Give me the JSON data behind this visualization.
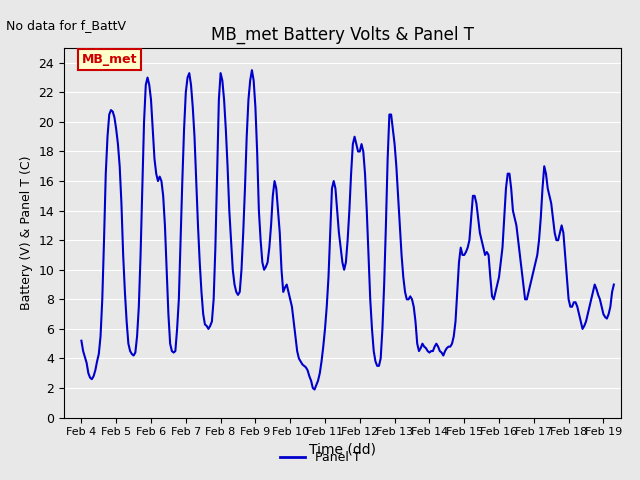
{
  "title": "MB_met Battery Volts & Panel T",
  "ylabel": "Battery (V) & Panel T (C)",
  "xlabel": "Time (dd)",
  "no_data_label": "No data for f_BattV",
  "legend_label": "Panel T",
  "legend_color": "#0000cc",
  "annotation_label": "MB_met",
  "annotation_bg": "#ffffcc",
  "annotation_border": "#cc0000",
  "annotation_text_color": "#cc0000",
  "ylim": [
    0,
    25
  ],
  "yticks": [
    0,
    2,
    4,
    6,
    8,
    10,
    12,
    14,
    16,
    18,
    20,
    22,
    24
  ],
  "xlim": [
    3.5,
    19.5
  ],
  "xtick_positions": [
    4,
    5,
    6,
    7,
    8,
    9,
    10,
    11,
    12,
    13,
    14,
    15,
    16,
    17,
    18,
    19
  ],
  "xtick_labels": [
    "Feb 4",
    "Feb 5",
    "Feb 6",
    "Feb 7",
    "Feb 8",
    "Feb 9",
    "Feb 10",
    "Feb 11",
    "Feb 12",
    "Feb 13",
    "Feb 14",
    "Feb 15",
    "Feb 16",
    "Feb 17",
    "Feb 18",
    "Feb 19"
  ],
  "line_color": "#0000cc",
  "line_width": 1.5,
  "bg_color": "#e8e8e8",
  "plot_bg_color": "#e8e8e8",
  "x": [
    4.0,
    4.05,
    4.1,
    4.15,
    4.2,
    4.25,
    4.3,
    4.35,
    4.4,
    4.45,
    4.5,
    4.55,
    4.6,
    4.65,
    4.7,
    4.75,
    4.8,
    4.85,
    4.9,
    4.95,
    5.0,
    5.05,
    5.1,
    5.15,
    5.2,
    5.25,
    5.3,
    5.35,
    5.4,
    5.45,
    5.5,
    5.55,
    5.6,
    5.65,
    5.7,
    5.75,
    5.8,
    5.85,
    5.9,
    5.95,
    6.0,
    6.05,
    6.1,
    6.15,
    6.2,
    6.25,
    6.3,
    6.35,
    6.4,
    6.45,
    6.5,
    6.55,
    6.6,
    6.65,
    6.7,
    6.75,
    6.8,
    6.85,
    6.9,
    6.95,
    7.0,
    7.05,
    7.1,
    7.15,
    7.2,
    7.25,
    7.3,
    7.35,
    7.4,
    7.45,
    7.5,
    7.55,
    7.6,
    7.65,
    7.7,
    7.75,
    7.8,
    7.85,
    7.9,
    7.95,
    8.0,
    8.05,
    8.1,
    8.15,
    8.2,
    8.25,
    8.3,
    8.35,
    8.4,
    8.45,
    8.5,
    8.55,
    8.6,
    8.65,
    8.7,
    8.75,
    8.8,
    8.85,
    8.9,
    8.95,
    9.0,
    9.05,
    9.1,
    9.15,
    9.2,
    9.25,
    9.3,
    9.35,
    9.4,
    9.45,
    9.5,
    9.55,
    9.6,
    9.65,
    9.7,
    9.75,
    9.8,
    9.85,
    9.9,
    9.95,
    10.0,
    10.05,
    10.1,
    10.15,
    10.2,
    10.25,
    10.3,
    10.35,
    10.4,
    10.45,
    10.5,
    10.55,
    10.6,
    10.65,
    10.7,
    10.75,
    10.8,
    10.85,
    10.9,
    10.95,
    11.0,
    11.05,
    11.1,
    11.15,
    11.2,
    11.25,
    11.3,
    11.35,
    11.4,
    11.45,
    11.5,
    11.55,
    11.6,
    11.65,
    11.7,
    11.75,
    11.8,
    11.85,
    11.9,
    11.95,
    12.0,
    12.05,
    12.1,
    12.15,
    12.2,
    12.25,
    12.3,
    12.35,
    12.4,
    12.45,
    12.5,
    12.55,
    12.6,
    12.65,
    12.7,
    12.75,
    12.8,
    12.85,
    12.9,
    12.95,
    13.0,
    13.05,
    13.1,
    13.15,
    13.2,
    13.25,
    13.3,
    13.35,
    13.4,
    13.45,
    13.5,
    13.55,
    13.6,
    13.65,
    13.7,
    13.75,
    13.8,
    13.85,
    13.9,
    13.95,
    14.0,
    14.05,
    14.1,
    14.15,
    14.2,
    14.25,
    14.3,
    14.35,
    14.4,
    14.45,
    14.5,
    14.55,
    14.6,
    14.65,
    14.7,
    14.75,
    14.8,
    14.85,
    14.9,
    14.95,
    15.0,
    15.05,
    15.1,
    15.15,
    15.2,
    15.25,
    15.3,
    15.35,
    15.4,
    15.45,
    15.5,
    15.55,
    15.6,
    15.65,
    15.7,
    15.75,
    15.8,
    15.85,
    15.9,
    15.95,
    16.0,
    16.05,
    16.1,
    16.15,
    16.2,
    16.25,
    16.3,
    16.35,
    16.4,
    16.45,
    16.5,
    16.55,
    16.6,
    16.65,
    16.7,
    16.75,
    16.8,
    16.85,
    16.9,
    16.95,
    17.0,
    17.05,
    17.1,
    17.15,
    17.2,
    17.25,
    17.3,
    17.35,
    17.4,
    17.45,
    17.5,
    17.55,
    17.6,
    17.65,
    17.7,
    17.75,
    17.8,
    17.85,
    17.9,
    17.95,
    18.0,
    18.05,
    18.1,
    18.15,
    18.2,
    18.25,
    18.3,
    18.35,
    18.4,
    18.45,
    18.5,
    18.55,
    18.6,
    18.65,
    18.7,
    18.75,
    18.8,
    18.85,
    18.9,
    18.95,
    19.0,
    19.05,
    19.1,
    19.15,
    19.2,
    19.25,
    19.3
  ],
  "y": [
    5.2,
    4.5,
    4.1,
    3.7,
    3.0,
    2.7,
    2.6,
    2.8,
    3.2,
    3.8,
    4.3,
    5.5,
    8.0,
    12.0,
    16.5,
    19.0,
    20.5,
    20.8,
    20.7,
    20.3,
    19.5,
    18.5,
    17.0,
    14.5,
    11.0,
    8.5,
    6.5,
    5.0,
    4.5,
    4.3,
    4.2,
    4.4,
    5.5,
    7.5,
    11.0,
    15.5,
    20.0,
    22.5,
    23.0,
    22.5,
    21.5,
    19.5,
    17.5,
    16.5,
    16.0,
    16.3,
    16.0,
    15.0,
    13.0,
    10.0,
    7.0,
    5.0,
    4.5,
    4.4,
    4.5,
    6.0,
    8.0,
    12.0,
    16.0,
    19.5,
    22.0,
    23.0,
    23.3,
    22.5,
    21.0,
    19.0,
    16.0,
    13.0,
    10.5,
    8.5,
    7.0,
    6.3,
    6.2,
    6.0,
    6.2,
    6.5,
    8.0,
    11.5,
    16.5,
    21.5,
    23.3,
    22.8,
    21.5,
    19.5,
    17.0,
    14.0,
    12.0,
    10.0,
    9.0,
    8.5,
    8.3,
    8.5,
    10.0,
    12.5,
    15.5,
    19.0,
    21.5,
    22.8,
    23.5,
    22.8,
    21.0,
    18.0,
    14.0,
    12.0,
    10.5,
    10.0,
    10.2,
    10.5,
    11.5,
    13.0,
    15.0,
    16.0,
    15.5,
    14.0,
    12.5,
    10.0,
    8.5,
    8.8,
    9.0,
    8.5,
    8.0,
    7.5,
    6.5,
    5.5,
    4.5,
    4.0,
    3.8,
    3.6,
    3.5,
    3.4,
    3.2,
    2.8,
    2.5,
    2.0,
    1.9,
    2.2,
    2.5,
    3.0,
    3.8,
    4.8,
    6.0,
    7.5,
    9.5,
    12.5,
    15.5,
    16.0,
    15.5,
    14.0,
    12.5,
    11.5,
    10.5,
    10.0,
    10.5,
    12.0,
    14.0,
    16.5,
    18.5,
    19.0,
    18.5,
    18.0,
    18.0,
    18.5,
    18.0,
    16.5,
    14.0,
    11.0,
    8.0,
    6.0,
    4.5,
    3.8,
    3.5,
    3.5,
    4.0,
    6.0,
    9.0,
    13.0,
    17.5,
    20.5,
    20.5,
    19.5,
    18.5,
    17.0,
    15.0,
    13.0,
    11.0,
    9.5,
    8.5,
    8.0,
    8.0,
    8.2,
    8.0,
    7.5,
    6.5,
    5.0,
    4.5,
    4.7,
    5.0,
    4.8,
    4.7,
    4.5,
    4.4,
    4.5,
    4.5,
    4.8,
    5.0,
    4.8,
    4.5,
    4.4,
    4.2,
    4.5,
    4.7,
    4.8,
    4.8,
    5.0,
    5.5,
    6.5,
    8.5,
    10.5,
    11.5,
    11.0,
    11.0,
    11.2,
    11.5,
    12.0,
    13.5,
    15.0,
    15.0,
    14.5,
    13.5,
    12.5,
    12.0,
    11.5,
    11.0,
    11.2,
    11.0,
    9.5,
    8.2,
    8.0,
    8.5,
    9.0,
    9.5,
    10.5,
    11.5,
    13.5,
    15.5,
    16.5,
    16.5,
    15.5,
    14.0,
    13.5,
    13.0,
    12.0,
    11.0,
    10.0,
    9.0,
    8.0,
    8.0,
    8.5,
    9.0,
    9.5,
    10.0,
    10.5,
    11.0,
    12.0,
    13.5,
    15.5,
    17.0,
    16.5,
    15.5,
    15.0,
    14.5,
    13.5,
    12.5,
    12.0,
    12.0,
    12.5,
    13.0,
    12.5,
    11.0,
    9.5,
    8.0,
    7.5,
    7.5,
    7.8,
    7.8,
    7.5,
    7.0,
    6.5,
    6.0,
    6.2,
    6.5,
    7.0,
    7.5,
    8.0,
    8.5,
    9.0,
    8.7,
    8.3,
    8.0,
    7.5,
    7.0,
    6.8,
    6.7,
    7.0,
    7.5,
    8.5,
    9.0
  ]
}
